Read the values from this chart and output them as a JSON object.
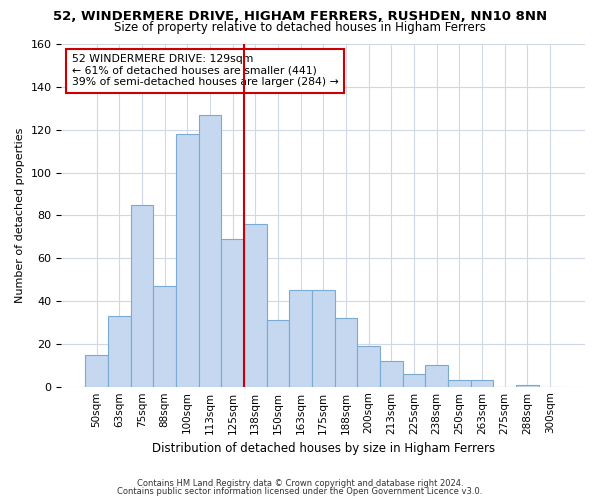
{
  "title": "52, WINDERMERE DRIVE, HIGHAM FERRERS, RUSHDEN, NN10 8NN",
  "subtitle": "Size of property relative to detached houses in Higham Ferrers",
  "xlabel": "Distribution of detached houses by size in Higham Ferrers",
  "ylabel": "Number of detached properties",
  "bar_labels": [
    "50sqm",
    "63sqm",
    "75sqm",
    "88sqm",
    "100sqm",
    "113sqm",
    "125sqm",
    "138sqm",
    "150sqm",
    "163sqm",
    "175sqm",
    "188sqm",
    "200sqm",
    "213sqm",
    "225sqm",
    "238sqm",
    "250sqm",
    "263sqm",
    "275sqm",
    "288sqm",
    "300sqm"
  ],
  "bar_heights": [
    15,
    33,
    85,
    47,
    118,
    127,
    69,
    76,
    31,
    45,
    45,
    32,
    19,
    12,
    6,
    10,
    3,
    3,
    0,
    1,
    0
  ],
  "bar_color": "#c5d8f0",
  "bar_edge_color": "#7aaad0",
  "vline_x_idx": 6.5,
  "vline_color": "#cc0000",
  "ylim": [
    0,
    160
  ],
  "yticks": [
    0,
    20,
    40,
    60,
    80,
    100,
    120,
    140,
    160
  ],
  "annotation_title": "52 WINDERMERE DRIVE: 129sqm",
  "annotation_line1": "← 61% of detached houses are smaller (441)",
  "annotation_line2": "39% of semi-detached houses are larger (284) →",
  "annotation_box_color": "#ffffff",
  "annotation_box_edge_color": "#cc0000",
  "footer1": "Contains HM Land Registry data © Crown copyright and database right 2024.",
  "footer2": "Contains public sector information licensed under the Open Government Licence v3.0.",
  "bg_color": "#ffffff",
  "grid_color": "#d0d8e8"
}
